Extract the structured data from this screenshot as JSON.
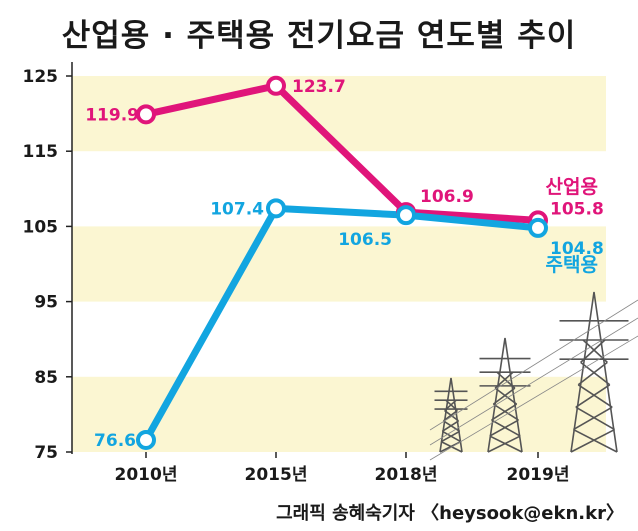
{
  "title": "산업용 · 주택용 전기요금 연도별 추이",
  "credit": "그래픽 송혜숙기자 〈heysook@ekn.kr〉",
  "colors": {
    "industrial": "#e0157a",
    "residential": "#12a5e0",
    "band": "#fbf6d2"
  },
  "icons": [
    "power-tower-icon"
  ],
  "chart_data": {
    "type": "line",
    "title": "산업용 · 주택용 전기요금 연도별 추이",
    "categories": [
      "2010년",
      "2015년",
      "2018년",
      "2019년"
    ],
    "yticks": [
      "125",
      "115",
      "105",
      "95",
      "85",
      "75"
    ],
    "ylim": [
      75,
      125
    ],
    "grid": false,
    "series": [
      {
        "name": "산업용",
        "values": [
          119.9,
          123.7,
          106.9,
          105.8
        ],
        "labels": [
          "119.9",
          "123.7",
          "106.9",
          "105.8"
        ]
      },
      {
        "name": "주택용",
        "values": [
          76.6,
          107.4,
          106.5,
          104.8
        ],
        "labels": [
          "76.6",
          "107.4",
          "106.5",
          "104.8"
        ]
      }
    ]
  }
}
